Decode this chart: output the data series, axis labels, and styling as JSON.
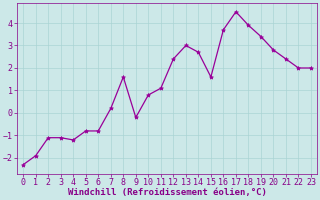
{
  "x": [
    0,
    1,
    2,
    3,
    4,
    5,
    6,
    7,
    8,
    9,
    10,
    11,
    12,
    13,
    14,
    15,
    16,
    17,
    18,
    19,
    20,
    21,
    22,
    23
  ],
  "y": [
    -2.3,
    -1.9,
    -1.1,
    -1.1,
    -1.2,
    -0.8,
    -0.8,
    0.2,
    1.6,
    -0.2,
    0.8,
    1.1,
    2.4,
    3.0,
    2.7,
    1.6,
    3.7,
    4.5,
    3.9,
    3.4,
    2.8,
    2.4,
    2.0,
    2.0
  ],
  "line_color": "#990099",
  "marker": "*",
  "marker_size": 3,
  "bg_color": "#cce8e8",
  "grid_color": "#aad4d4",
  "xlabel": "Windchill (Refroidissement éolien,°C)",
  "xlim": [
    -0.5,
    23.5
  ],
  "ylim": [
    -2.7,
    4.9
  ],
  "yticks": [
    -2,
    -1,
    0,
    1,
    2,
    3,
    4
  ],
  "xticks": [
    0,
    1,
    2,
    3,
    4,
    5,
    6,
    7,
    8,
    9,
    10,
    11,
    12,
    13,
    14,
    15,
    16,
    17,
    18,
    19,
    20,
    21,
    22,
    23
  ],
  "xlabel_fontsize": 6.5,
  "tick_fontsize": 6,
  "tick_color": "#880088",
  "spine_color": "#880088",
  "linewidth": 0.9
}
